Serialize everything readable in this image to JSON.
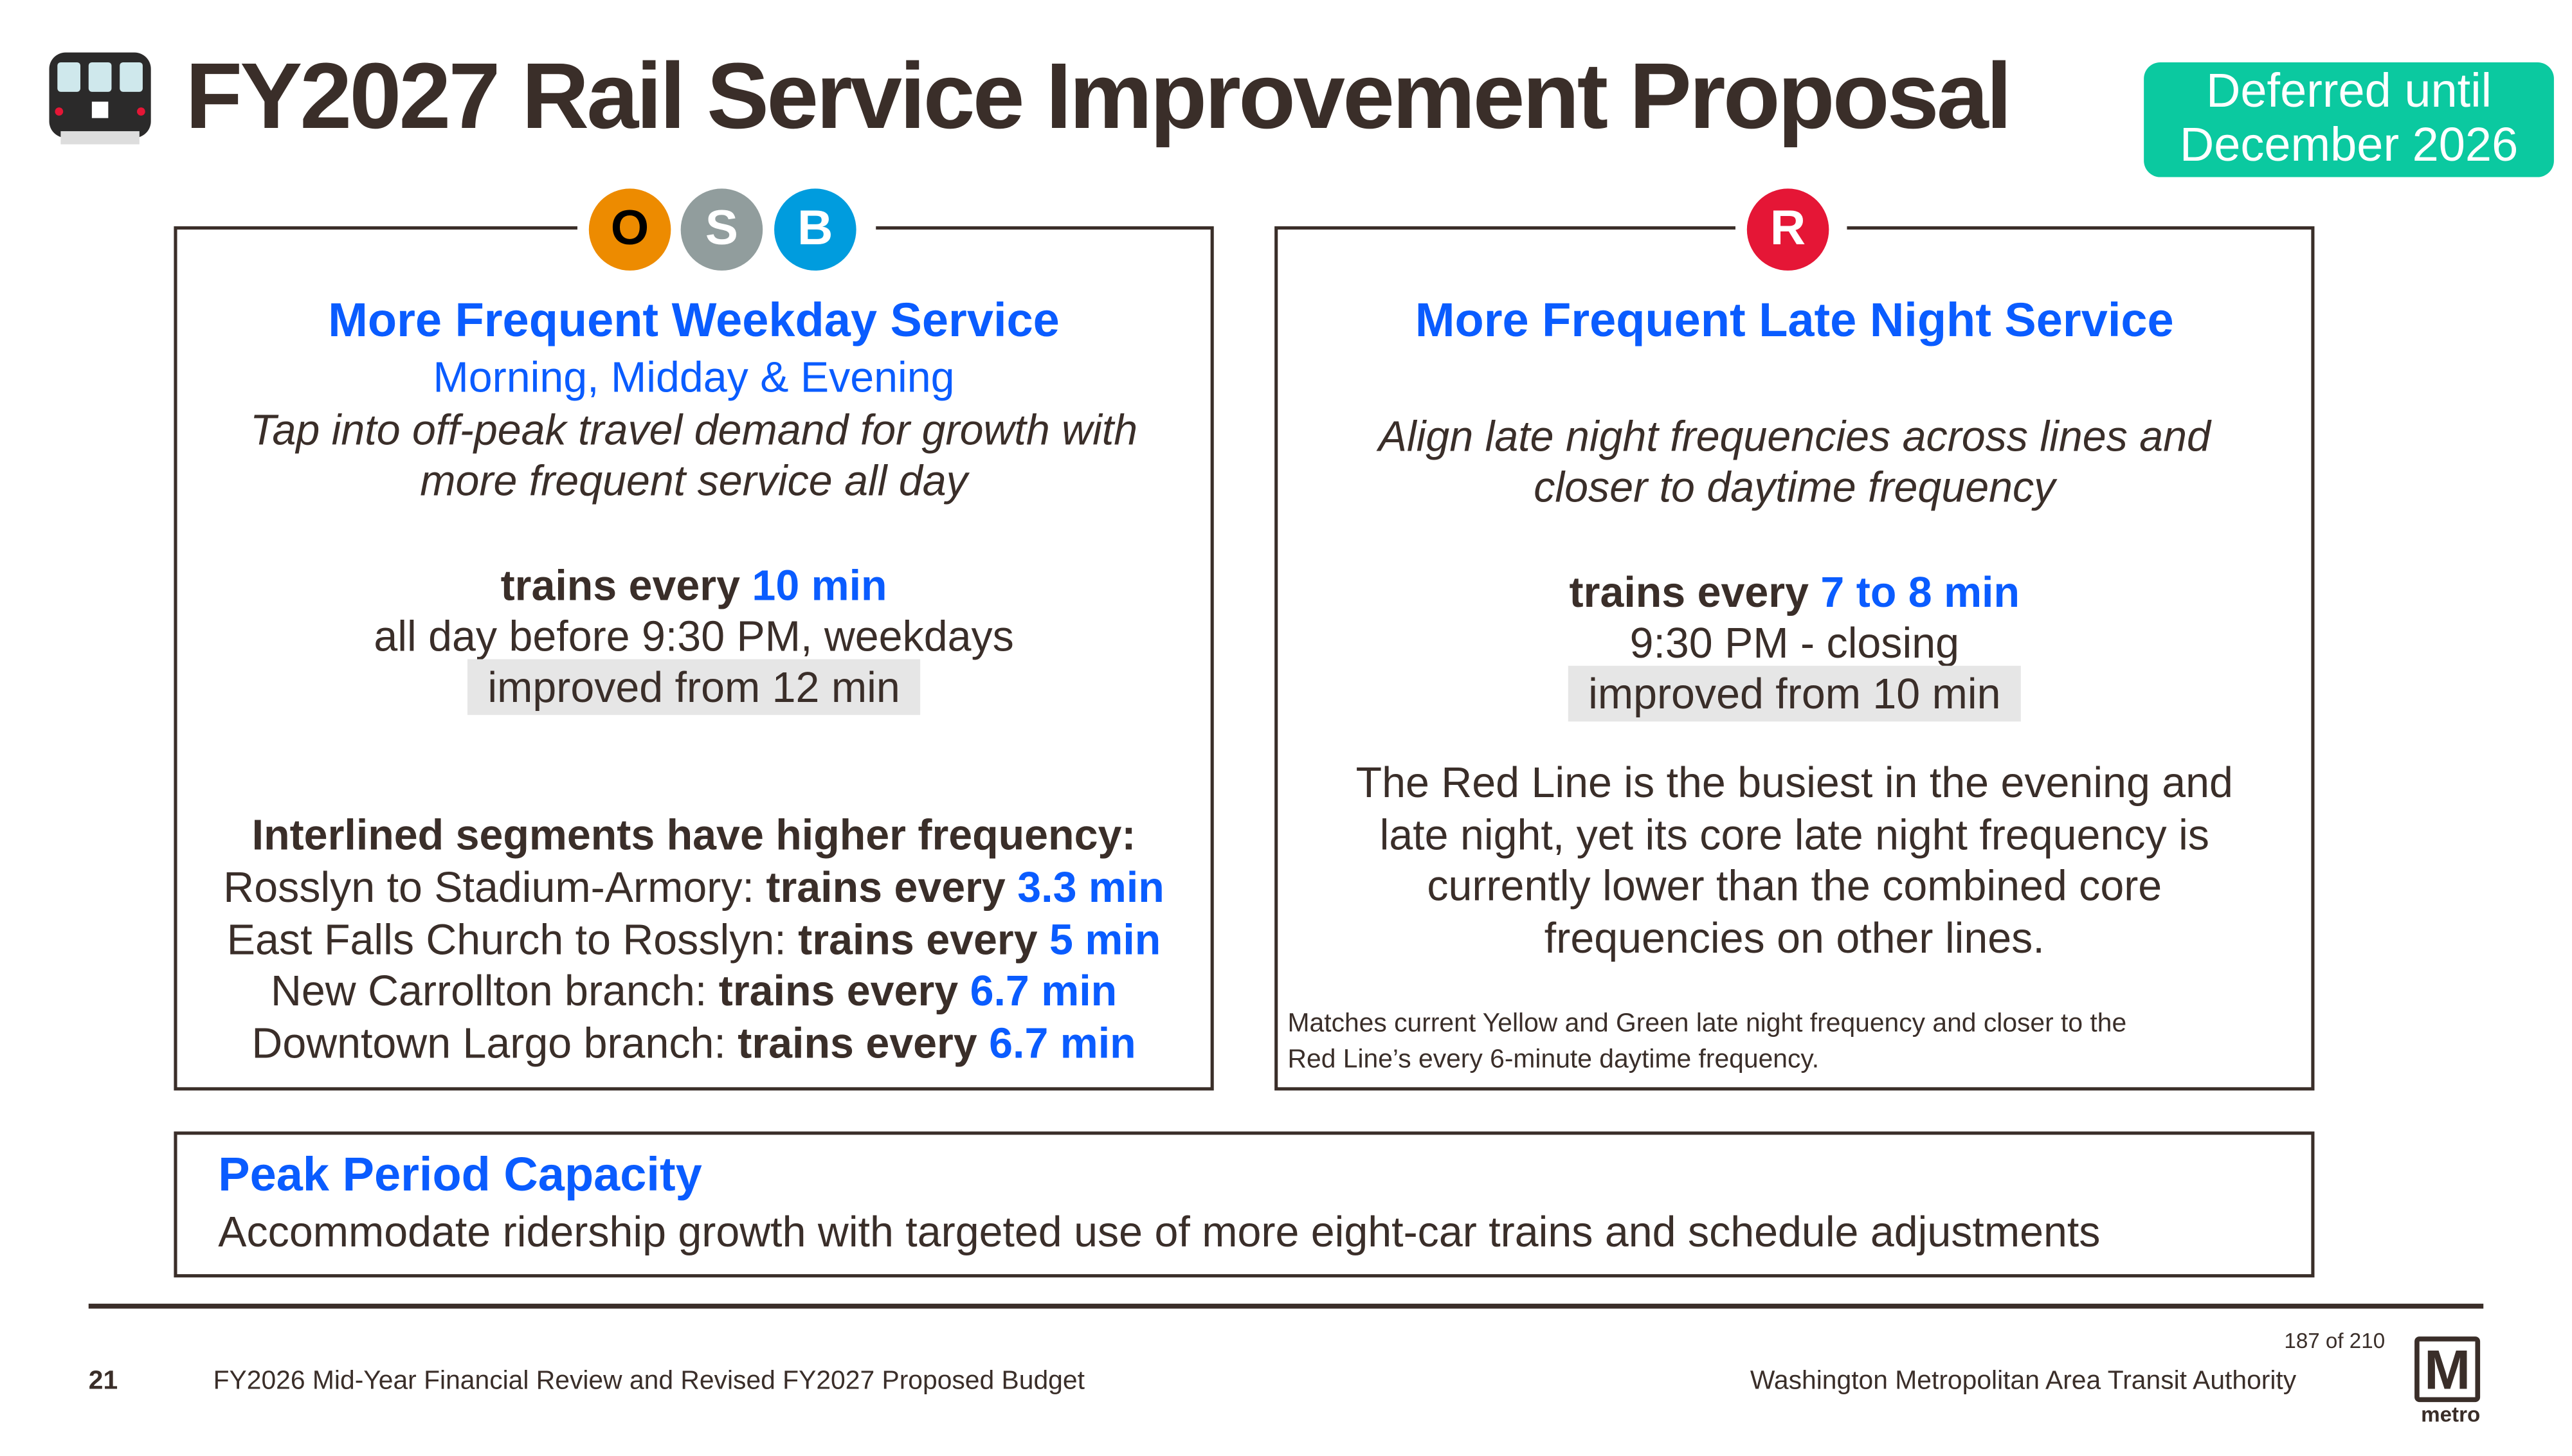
{
  "header": {
    "title": "FY2027 Rail Service Improvement Proposal",
    "badge_line1": "Deferred until",
    "badge_line2": "December 2026",
    "train_icon": "train-front-icon"
  },
  "colors": {
    "text": "#3a2e29",
    "accent_blue": "#0a5cff",
    "badge": "#0bc9a0",
    "orange": "#ed8b00",
    "silver": "#919d9d",
    "blue_line": "#009cde",
    "red_line": "#e51636",
    "highlight": "#e6e6e6"
  },
  "left_panel": {
    "lines": [
      {
        "letter": "O"
      },
      {
        "letter": "S"
      },
      {
        "letter": "B"
      }
    ],
    "heading": "More Frequent Weekday Service",
    "subheading": "Morning, Midday & Evening",
    "desc1": "Tap into off-peak travel demand for growth with",
    "desc2": "more frequent service all day",
    "trains_every": "trains every",
    "frequency": "10 min",
    "when": "all day before 9:30 PM, weekdays",
    "improved": "improved from 12 min",
    "interlined_heading": "Interlined segments have higher frequency:",
    "segments": [
      {
        "name": "Rosslyn to Stadium-Armory:",
        "label": "trains every",
        "value": "3.3 min"
      },
      {
        "name": "East Falls Church to Rosslyn:",
        "label": "trains every",
        "value": "5 min"
      },
      {
        "name": "New Carrollton branch:",
        "label": "trains every",
        "value": "6.7 min"
      },
      {
        "name": "Downtown Largo branch:",
        "label": "trains every",
        "value": "6.7 min"
      }
    ]
  },
  "right_panel": {
    "line": "R",
    "heading": "More Frequent Late Night Service",
    "desc1": "Align late night frequencies across lines and",
    "desc2": "closer to daytime frequency",
    "trains_every": "trains every",
    "frequency": "7 to 8 min",
    "when": "9:30 PM - closing",
    "improved": "improved from 10 min",
    "para": [
      "The Red Line is the busiest in the evening and",
      "late night, yet its core late night frequency is",
      "currently lower than the combined core",
      "frequencies on other lines."
    ],
    "note1": "Matches current Yellow and Green late night frequency and closer to the",
    "note2": "Red Line’s every 6-minute daytime frequency."
  },
  "peak": {
    "heading": "Peak Period Capacity",
    "text": "Accommodate ridership growth with targeted use of more eight-car trains and schedule adjustments"
  },
  "footer": {
    "page_number": "21",
    "doc_title": "FY2026 Mid-Year Financial Review and Revised FY2027 Proposed Budget",
    "page_count": "187 of 210",
    "org": "Washington Metropolitan Area Transit Authority",
    "logo_letter": "M",
    "logo_text": "metro"
  }
}
